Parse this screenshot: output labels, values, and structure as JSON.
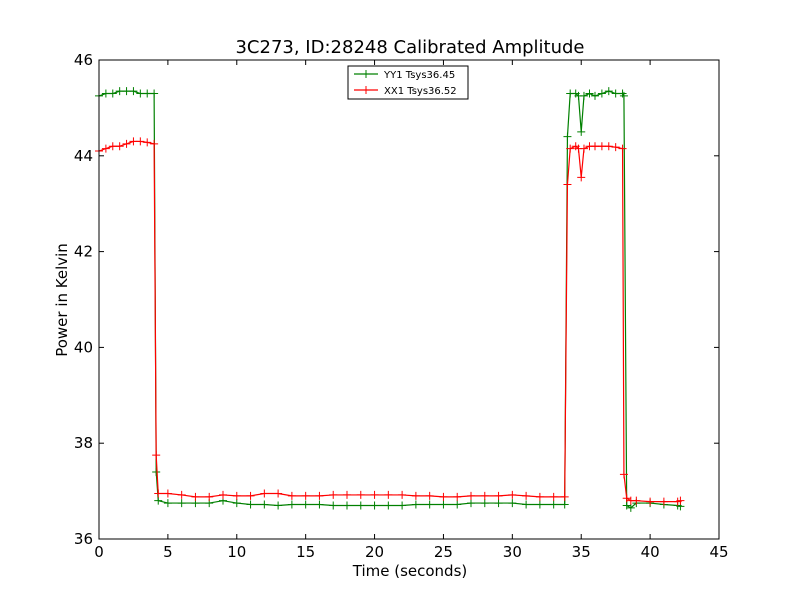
{
  "chart_data": {
    "type": "line",
    "title": "3C273, ID:28248 Calibrated Amplitude",
    "xlabel": "Time (seconds)",
    "ylabel": "Power in Kelvin",
    "xlim": [
      0,
      45
    ],
    "ylim": [
      36,
      46
    ],
    "xticks": [
      0,
      5,
      10,
      15,
      20,
      25,
      30,
      35,
      40,
      45
    ],
    "yticks": [
      36,
      38,
      40,
      42,
      44,
      46
    ],
    "grid": false,
    "legend_position": "top-center",
    "marker": "+",
    "series": [
      {
        "name": "YY1 Tsys36.45",
        "color": "#008000",
        "points": [
          [
            0.0,
            45.25
          ],
          [
            0.5,
            45.3
          ],
          [
            1.0,
            45.3
          ],
          [
            1.5,
            45.35
          ],
          [
            2.0,
            45.35
          ],
          [
            2.5,
            45.35
          ],
          [
            3.0,
            45.3
          ],
          [
            3.5,
            45.3
          ],
          [
            4.0,
            45.3
          ],
          [
            4.15,
            37.4
          ],
          [
            4.3,
            36.8
          ],
          [
            5.0,
            36.75
          ],
          [
            6.0,
            36.75
          ],
          [
            7.0,
            36.75
          ],
          [
            8.0,
            36.75
          ],
          [
            9.0,
            36.8
          ],
          [
            10.0,
            36.75
          ],
          [
            11.0,
            36.72
          ],
          [
            12.0,
            36.72
          ],
          [
            13.0,
            36.7
          ],
          [
            14.0,
            36.72
          ],
          [
            15.0,
            36.72
          ],
          [
            16.0,
            36.72
          ],
          [
            17.0,
            36.7
          ],
          [
            18.0,
            36.7
          ],
          [
            19.0,
            36.7
          ],
          [
            20.0,
            36.7
          ],
          [
            21.0,
            36.7
          ],
          [
            22.0,
            36.7
          ],
          [
            23.0,
            36.72
          ],
          [
            24.0,
            36.72
          ],
          [
            25.0,
            36.72
          ],
          [
            26.0,
            36.72
          ],
          [
            27.0,
            36.75
          ],
          [
            28.0,
            36.75
          ],
          [
            29.0,
            36.75
          ],
          [
            30.0,
            36.75
          ],
          [
            31.0,
            36.72
          ],
          [
            32.0,
            36.72
          ],
          [
            33.0,
            36.72
          ],
          [
            33.8,
            36.72
          ],
          [
            34.0,
            44.4
          ],
          [
            34.2,
            45.3
          ],
          [
            34.6,
            45.3
          ],
          [
            34.8,
            45.25
          ],
          [
            35.0,
            44.5
          ],
          [
            35.2,
            45.25
          ],
          [
            35.6,
            45.3
          ],
          [
            36.0,
            45.25
          ],
          [
            36.5,
            45.3
          ],
          [
            37.0,
            45.35
          ],
          [
            37.5,
            45.3
          ],
          [
            38.0,
            45.3
          ],
          [
            38.1,
            45.25
          ],
          [
            38.3,
            36.7
          ],
          [
            38.6,
            36.65
          ],
          [
            39.0,
            36.75
          ],
          [
            40.0,
            36.75
          ],
          [
            41.0,
            36.72
          ],
          [
            42.0,
            36.7
          ],
          [
            42.2,
            36.68
          ]
        ]
      },
      {
        "name": "XX1 Tsys36.52",
        "color": "#ff0000",
        "points": [
          [
            0.0,
            44.1
          ],
          [
            0.5,
            44.15
          ],
          [
            1.0,
            44.2
          ],
          [
            1.5,
            44.2
          ],
          [
            2.0,
            44.25
          ],
          [
            2.5,
            44.3
          ],
          [
            3.0,
            44.3
          ],
          [
            3.5,
            44.28
          ],
          [
            4.0,
            44.25
          ],
          [
            4.15,
            37.75
          ],
          [
            4.3,
            36.95
          ],
          [
            5.0,
            36.95
          ],
          [
            6.0,
            36.92
          ],
          [
            7.0,
            36.88
          ],
          [
            8.0,
            36.88
          ],
          [
            9.0,
            36.92
          ],
          [
            10.0,
            36.9
          ],
          [
            11.0,
            36.9
          ],
          [
            12.0,
            36.95
          ],
          [
            13.0,
            36.95
          ],
          [
            14.0,
            36.9
          ],
          [
            15.0,
            36.9
          ],
          [
            16.0,
            36.9
          ],
          [
            17.0,
            36.92
          ],
          [
            18.0,
            36.92
          ],
          [
            19.0,
            36.92
          ],
          [
            20.0,
            36.92
          ],
          [
            21.0,
            36.92
          ],
          [
            22.0,
            36.92
          ],
          [
            23.0,
            36.9
          ],
          [
            24.0,
            36.9
          ],
          [
            25.0,
            36.88
          ],
          [
            26.0,
            36.88
          ],
          [
            27.0,
            36.9
          ],
          [
            28.0,
            36.9
          ],
          [
            29.0,
            36.9
          ],
          [
            30.0,
            36.92
          ],
          [
            31.0,
            36.9
          ],
          [
            32.0,
            36.88
          ],
          [
            33.0,
            36.88
          ],
          [
            33.8,
            36.88
          ],
          [
            34.0,
            43.4
          ],
          [
            34.2,
            44.15
          ],
          [
            34.6,
            44.2
          ],
          [
            34.8,
            44.15
          ],
          [
            35.0,
            43.55
          ],
          [
            35.2,
            44.15
          ],
          [
            35.6,
            44.2
          ],
          [
            36.0,
            44.2
          ],
          [
            36.5,
            44.2
          ],
          [
            37.0,
            44.2
          ],
          [
            37.5,
            44.18
          ],
          [
            38.0,
            44.15
          ],
          [
            38.1,
            37.35
          ],
          [
            38.3,
            36.85
          ],
          [
            38.6,
            36.8
          ],
          [
            39.0,
            36.8
          ],
          [
            40.0,
            36.78
          ],
          [
            41.0,
            36.78
          ],
          [
            42.0,
            36.78
          ],
          [
            42.2,
            36.8
          ]
        ]
      }
    ]
  }
}
